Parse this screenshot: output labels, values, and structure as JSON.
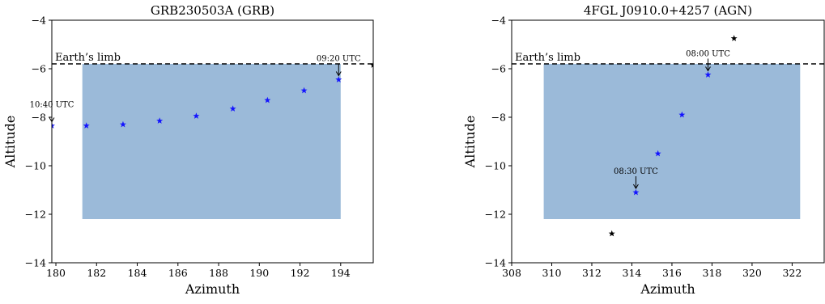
{
  "chart_data": [
    {
      "type": "scatter",
      "title": "GRB230503A (GRB)",
      "xlabel": "Azimuth",
      "ylabel": "Altitude",
      "xlim": [
        179.8,
        195.6
      ],
      "ylim": [
        -14,
        -4
      ],
      "xticks": [
        180,
        182,
        184,
        186,
        188,
        190,
        192,
        194
      ],
      "yticks": [
        -14,
        -12,
        -10,
        -8,
        -6,
        -4
      ],
      "grid": false,
      "limb": {
        "label": "Earth’s limb",
        "altitude": -5.8
      },
      "region": {
        "x": [
          181.3,
          194.0
        ],
        "y": [
          -12.2,
          -5.8
        ],
        "color": "#9bbad9"
      },
      "series": [
        {
          "color": "#1414ff",
          "marker": "star",
          "points": [
            {
              "x": 179.8,
              "y": -8.35
            },
            {
              "x": 181.5,
              "y": -8.35
            },
            {
              "x": 183.3,
              "y": -8.3
            },
            {
              "x": 185.1,
              "y": -8.15
            },
            {
              "x": 186.9,
              "y": -7.95
            },
            {
              "x": 188.7,
              "y": -7.65
            },
            {
              "x": 190.4,
              "y": -7.3
            },
            {
              "x": 192.2,
              "y": -6.9
            },
            {
              "x": 193.9,
              "y": -6.45
            }
          ]
        },
        {
          "color": "#000000",
          "marker": "star",
          "points": [
            {
              "x": 195.6,
              "y": -5.85
            }
          ]
        }
      ],
      "annotations": [
        {
          "text": "10:40 UTC",
          "x": 179.8,
          "y": -8.35,
          "text_pos": "above"
        },
        {
          "text": "09:20 UTC",
          "x": 193.9,
          "y": -6.45,
          "text_pos": "above"
        }
      ]
    },
    {
      "type": "scatter",
      "title": "4FGL J0910.0+4257 (AGN)",
      "xlabel": "Azimuth",
      "ylabel": "Altitude",
      "xlim": [
        308,
        323.6
      ],
      "ylim": [
        -14,
        -4
      ],
      "xticks": [
        308,
        310,
        312,
        314,
        316,
        318,
        320,
        322
      ],
      "yticks": [
        -14,
        -12,
        -10,
        -8,
        -6,
        -4
      ],
      "grid": false,
      "limb": {
        "label": "Earth’s limb",
        "altitude": -5.8
      },
      "region": {
        "x": [
          309.6,
          322.4
        ],
        "y": [
          -12.2,
          -5.8
        ],
        "color": "#9bbad9"
      },
      "series": [
        {
          "color": "#1414ff",
          "marker": "star",
          "points": [
            {
              "x": 317.8,
              "y": -6.25
            },
            {
              "x": 316.5,
              "y": -7.9
            },
            {
              "x": 315.3,
              "y": -9.5
            },
            {
              "x": 314.2,
              "y": -11.1
            }
          ]
        },
        {
          "color": "#000000",
          "marker": "star",
          "points": [
            {
              "x": 319.1,
              "y": -4.75
            },
            {
              "x": 313.0,
              "y": -12.8
            }
          ]
        }
      ],
      "annotations": [
        {
          "text": "08:00 UTC",
          "x": 317.8,
          "y": -6.25,
          "text_pos": "above"
        },
        {
          "text": "08:30 UTC",
          "x": 314.2,
          "y": -11.1,
          "text_pos": "above"
        }
      ]
    }
  ]
}
